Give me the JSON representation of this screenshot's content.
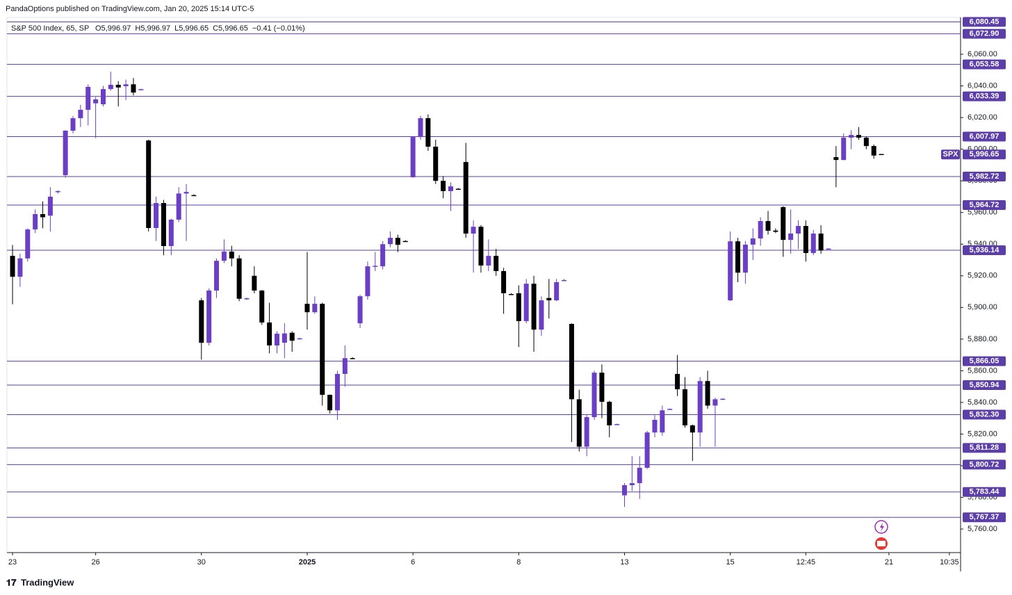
{
  "chart_data": {
    "type": "candlestick",
    "title": "PandaOptions published on TradingView.com, Jan 20, 2025 15:14 UTC-5",
    "legend": "S&P 500 Index, 65, SP",
    "ohlc_text": [
      "O5,996.97",
      "H5,996.97",
      "L5,996.65",
      "C5,996.65",
      "−0.41 (−0.01%)"
    ],
    "footer": "TradingView",
    "symbol": "SPX",
    "last_price": {
      "value": 5996.65,
      "label": "5,996.65"
    },
    "up_color": "#6a3fc4",
    "down_color": "#000000",
    "level_color": "#5b3ea8",
    "x": [
      0,
      1,
      2,
      3,
      4,
      5,
      6,
      7,
      8,
      9,
      10,
      11,
      12,
      13,
      14,
      15,
      16,
      17,
      18,
      19,
      20,
      21,
      22,
      23,
      24,
      25,
      26,
      27,
      28,
      29,
      30,
      31,
      32,
      33,
      34,
      35,
      36,
      37,
      38,
      39,
      40,
      41,
      42,
      43,
      44,
      45,
      46,
      47,
      48,
      49,
      50,
      51,
      52,
      53,
      54,
      55,
      56,
      57,
      58,
      59,
      60,
      61,
      62,
      63,
      64,
      65,
      66,
      67,
      68,
      69,
      70,
      71,
      72,
      73,
      74,
      75,
      76,
      77,
      78,
      79,
      80,
      81,
      82,
      83,
      84,
      85,
      86,
      87,
      88,
      89,
      90,
      91,
      92,
      93,
      94,
      95,
      96,
      97,
      98,
      99,
      100,
      101,
      102,
      103,
      104,
      105,
      106,
      107,
      108,
      109,
      110,
      111,
      112,
      113,
      114,
      115
    ],
    "open": [
      5932.6,
      5919.4,
      5931,
      5949.3,
      5959,
      5958,
      5973,
      5983.6,
      6011.7,
      6019.6,
      6024.9,
      6029,
      6028.4,
      6038,
      6040.7,
      6039.8,
      6041,
      6037.6,
      6005.5,
      5950.2,
      5966,
      5938.8,
      5955.5,
      5972,
      5971,
      5904.5,
      5877.7,
      5910.7,
      5929.5,
      5935.3,
      5931,
      5905.2,
      5920,
      5910.7,
      5890.5,
      5876,
      5877.7,
      5884,
      5880.2,
      5902.3,
      5897,
      5902.3,
      5844.8,
      5835,
      5858,
      5868,
      5890,
      5907.1,
      5925.8,
      5926,
      5940,
      5944,
      5942,
      5982.3,
      6007.7,
      6019.6,
      6001.6,
      5980,
      5973.5,
      5975,
      5991.9,
      5946.7,
      5951,
      5926.5,
      5932.6,
      5923,
      5908.5,
      5909,
      5891.4,
      5915,
      5886,
      5906,
      5904.5,
      5917,
      5889.6,
      5842,
      5812,
      5830.7,
      5858.8,
      5840.4,
      5826,
      5781.3,
      5787.7,
      5789,
      5798.7,
      5821,
      5821,
      5835.6,
      5858,
      5848.3,
      5825.5,
      5821,
      5853.5,
      5838,
      5842,
      5904.5,
      5941.8,
      5922,
      5939.7,
      5943.6,
      5954.6,
      5948.6,
      5963.4,
      5942.7,
      5946.7,
      5951.5,
      5934.4,
      5946.7,
      5937,
      5995,
      5993.2,
      6007.3,
      6009,
      6007.3,
      6002,
      5996.97
    ],
    "high": [
      5939.5,
      5934,
      5950,
      5962,
      5967,
      5976,
      5974,
      6012,
      6021,
      6028,
      6041,
      6033,
      6040,
      6049,
      6043,
      6044,
      6045,
      6038.2,
      6006,
      5970,
      5968,
      5956,
      5976,
      5978,
      5971.5,
      5906,
      5912,
      5931,
      5943,
      5939,
      5933,
      5906.2,
      5926,
      5911,
      5903,
      5885,
      5890,
      5885,
      5880.8,
      5935,
      5907,
      5903,
      5845,
      5860,
      5876,
      5868.5,
      5908,
      5929,
      5935,
      5942,
      5948,
      5946,
      5942.5,
      6008,
      6021,
      6022,
      6006,
      5983,
      5979,
      5975.5,
      6004,
      5955,
      5952,
      5943,
      5937,
      5925,
      5909,
      5914,
      5918,
      5920,
      5907,
      5918,
      5918,
      5918,
      5890,
      5848,
      5832,
      5860,
      5864,
      5841,
      5826.6,
      5789,
      5806,
      5806,
      5822,
      5832,
      5838,
      5836.2,
      5870,
      5856,
      5826,
      5856,
      5860,
      5843,
      5842.6,
      5948,
      5944,
      5942,
      5950,
      5957,
      5961,
      5950,
      5964,
      5962,
      5955,
      5955,
      5949,
      5952,
      5937.5,
      6002,
      6010,
      6012,
      6014,
      6008,
      6003,
      5996.97
    ],
    "low": [
      5902,
      5913,
      5929,
      5947,
      5950,
      5948,
      5972,
      5982,
      6010,
      6014,
      6015,
      6007,
      6027,
      6037,
      6027,
      6031,
      6034,
      6037.3,
      5948,
      5942,
      5933,
      5933,
      5954,
      5942,
      5970.5,
      5867,
      5876,
      5906,
      5928,
      5926,
      5904,
      5904.8,
      5909,
      5889,
      5871,
      5871,
      5868,
      5872,
      5879.9,
      5886,
      5896,
      5838,
      5833,
      5829,
      5850,
      5867.5,
      5887,
      5905,
      5923,
      5924,
      5938,
      5935,
      5941.5,
      5982,
      6006,
      5999,
      5978,
      5969,
      5961,
      5974.5,
      5944,
      5922,
      5922,
      5923,
      5920,
      5896,
      5908,
      5875,
      5890,
      5872,
      5882,
      5893,
      5904,
      5916.7,
      5815,
      5809,
      5806,
      5829,
      5830,
      5818,
      5825.7,
      5774,
      5784,
      5779,
      5798,
      5818,
      5819,
      5835.3,
      5844,
      5824,
      5803,
      5812,
      5836,
      5812,
      5841.7,
      5904,
      5916,
      5915,
      5930,
      5939,
      5946,
      5947,
      5932,
      5934,
      5937,
      5929,
      5933,
      5934,
      5936.8,
      5976,
      5993,
      6000,
      6006,
      6000,
      5994,
      5996.65
    ],
    "close": [
      5919.4,
      5931,
      5949.3,
      5959,
      5957,
      5970,
      5973.5,
      6011.7,
      6019.6,
      6024.9,
      6039.4,
      6031.5,
      6038,
      6040.7,
      6039,
      6041,
      6035.8,
      6037.9,
      5950.2,
      5966,
      5938.8,
      5955.5,
      5972,
      5973,
      5970.8,
      5877.7,
      5910.7,
      5929.5,
      5935.3,
      5931,
      5905.5,
      5905.8,
      5910.7,
      5890.5,
      5876,
      5883.4,
      5883.6,
      5879,
      5880.5,
      5897,
      5902.3,
      5844.8,
      5835,
      5858,
      5868,
      5867.8,
      5907.1,
      5926,
      5926.3,
      5940,
      5944,
      5939.6,
      5941.8,
      6007.7,
      6019.6,
      6001.6,
      5980,
      5973.5,
      5976.5,
      5974.8,
      5946.7,
      5951,
      5926.5,
      5932.6,
      5923,
      5909,
      5908.3,
      5891.4,
      5915,
      5886,
      5904.5,
      5904.5,
      5916,
      5917.3,
      5842,
      5812,
      5830.7,
      5858.8,
      5840.4,
      5825.5,
      5826.3,
      5787.7,
      5789,
      5798.7,
      5821,
      5829,
      5835,
      5835.9,
      5848.3,
      5825.5,
      5821,
      5853.5,
      5838,
      5842,
      5842.3,
      5941.8,
      5922,
      5939.7,
      5943.6,
      5954.6,
      5948.5,
      5947.8,
      5942.7,
      5946.7,
      5951.5,
      5934.4,
      5946.7,
      5936,
      5937.2,
      5993.2,
      6007.3,
      6009,
      6007.3,
      6002,
      5996,
      5996.65
    ],
    "xlim": [
      -0.74,
      125.48
    ],
    "xticks": [
      {
        "value": 0,
        "label": "23"
      },
      {
        "value": 11,
        "label": "26"
      },
      {
        "value": 25,
        "label": "30"
      },
      {
        "value": 39,
        "label": "2025",
        "bold": true
      },
      {
        "value": 53,
        "label": "6"
      },
      {
        "value": 67,
        "label": "8"
      },
      {
        "value": 81,
        "label": "13"
      },
      {
        "value": 95,
        "label": "15"
      },
      {
        "value": 105,
        "label": "12:45"
      },
      {
        "value": 116,
        "label": "21"
      },
      {
        "value": 124,
        "label": "10:35"
      }
    ],
    "ylim": [
      5745.1,
      6083.3
    ],
    "yticks": [
      {
        "value": 5760,
        "label": "5,760.00"
      },
      {
        "value": 5780,
        "label": "5,780.00"
      },
      {
        "value": 5800,
        "label": "5,800.00"
      },
      {
        "value": 5820,
        "label": "5,820.00"
      },
      {
        "value": 5840,
        "label": "5,840.00"
      },
      {
        "value": 5860,
        "label": "5,860.00"
      },
      {
        "value": 5880,
        "label": "5,880.00"
      },
      {
        "value": 5900,
        "label": "5,900.00"
      },
      {
        "value": 5920,
        "label": "5,920.00"
      },
      {
        "value": 5940,
        "label": "5,940.00"
      },
      {
        "value": 5960,
        "label": "5,960.00"
      },
      {
        "value": 5980,
        "label": "5,980.00"
      },
      {
        "value": 6000,
        "label": "6,000.00"
      },
      {
        "value": 6020,
        "label": "6,020.00"
      },
      {
        "value": 6040,
        "label": "6,040.00"
      },
      {
        "value": 6060,
        "label": "6,060.00"
      }
    ],
    "levels": [
      {
        "value": 6080.45,
        "label": "6,080.45"
      },
      {
        "value": 6072.9,
        "label": "6,072.90"
      },
      {
        "value": 6053.58,
        "label": "6,053.58"
      },
      {
        "value": 6033.39,
        "label": "6,033.39"
      },
      {
        "value": 6007.97,
        "label": "6,007.97"
      },
      {
        "value": 5982.72,
        "label": "5,982.72"
      },
      {
        "value": 5964.72,
        "label": "5,964.72"
      },
      {
        "value": 5936.14,
        "label": "5,936.14"
      },
      {
        "value": 5866.05,
        "label": "5,866.05"
      },
      {
        "value": 5850.94,
        "label": "5,850.94"
      },
      {
        "value": 5832.3,
        "label": "5,832.30"
      },
      {
        "value": 5811.28,
        "label": "5,811.28"
      },
      {
        "value": 5800.72,
        "label": "5,800.72"
      },
      {
        "value": 5783.44,
        "label": "5,783.44"
      },
      {
        "value": 5767.37,
        "label": "5,767.37"
      }
    ]
  }
}
